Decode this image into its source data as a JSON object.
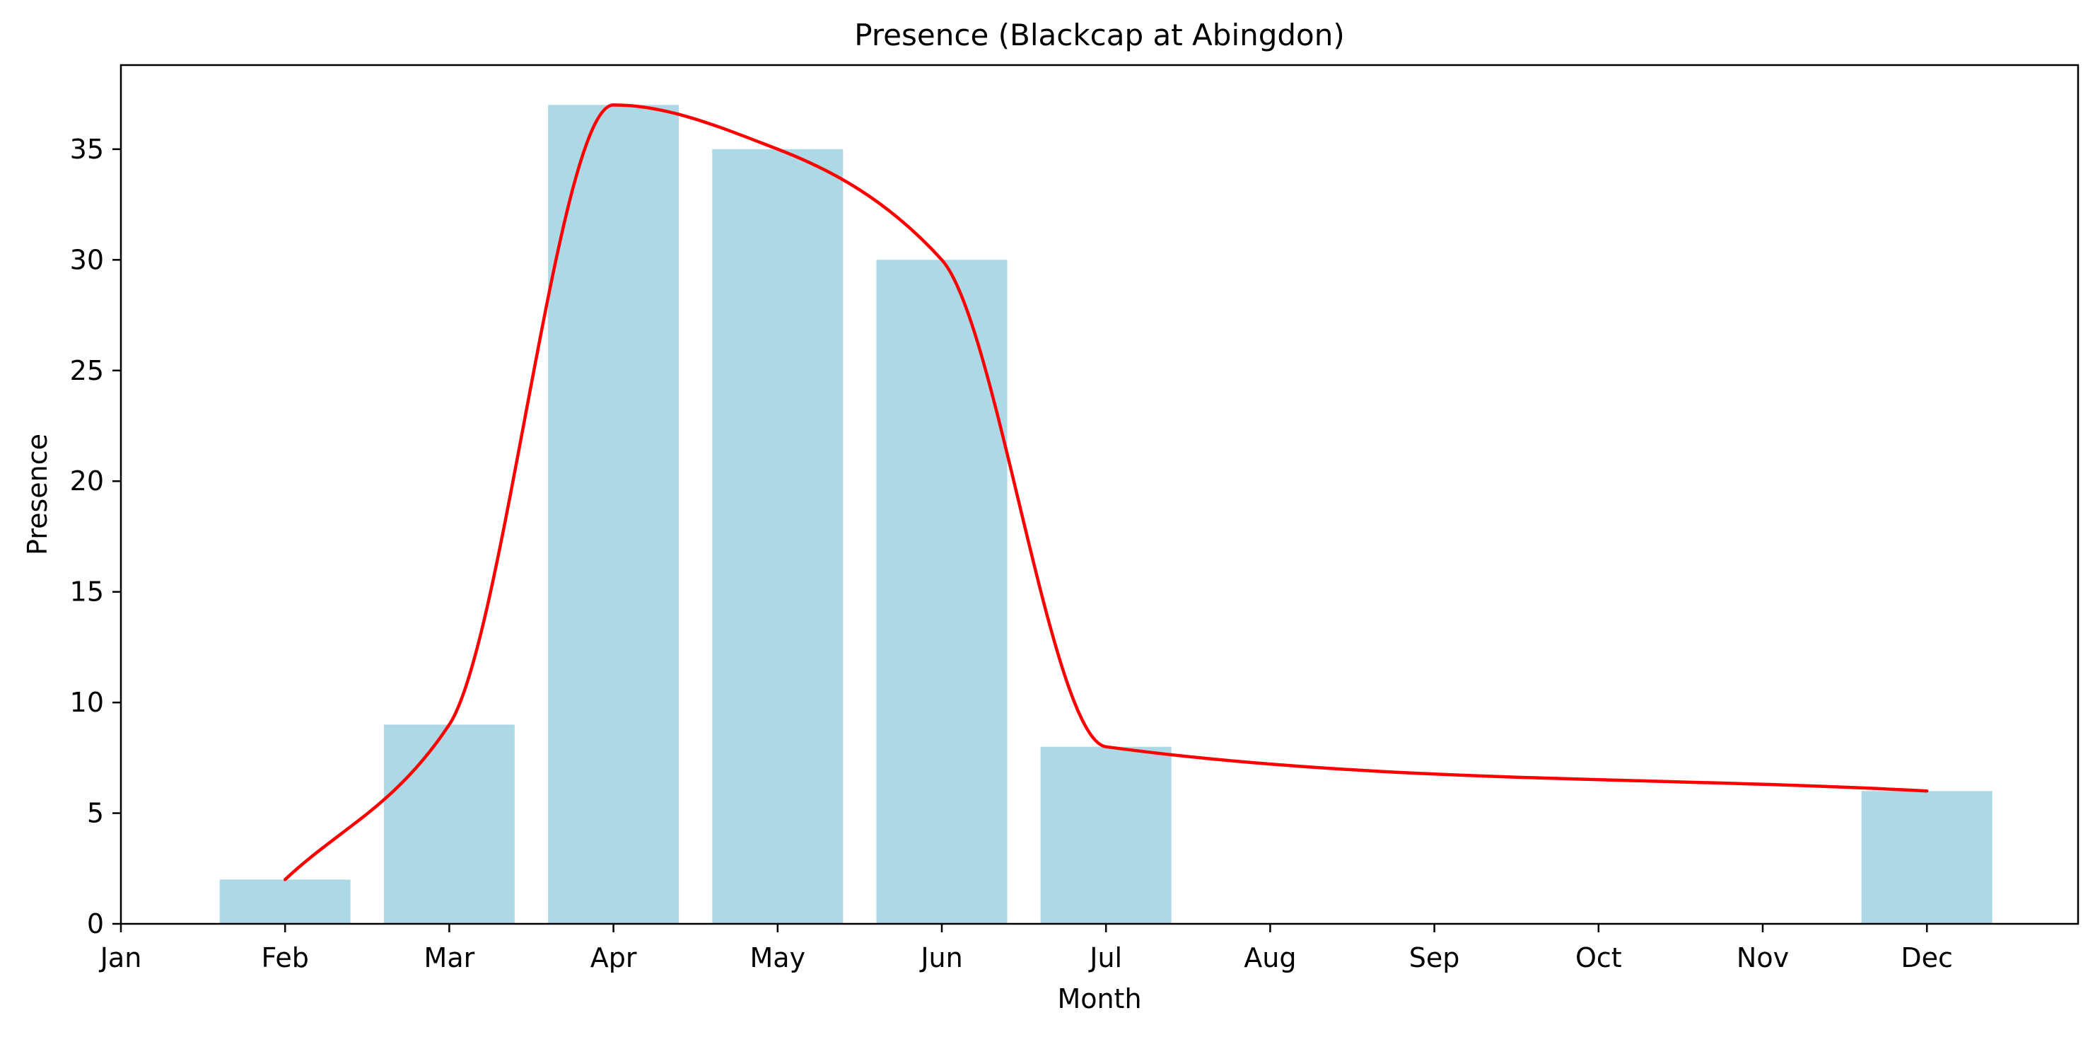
{
  "chart_data": {
    "type": "bar",
    "title": "Presence (Blackcap at Abingdon)",
    "xlabel": "Month",
    "ylabel": "Presence",
    "categories": [
      "Jan",
      "Feb",
      "Mar",
      "Apr",
      "May",
      "Jun",
      "Jul",
      "Aug",
      "Sep",
      "Oct",
      "Nov",
      "Dec"
    ],
    "ylim": [
      0,
      38.8
    ],
    "yticks": [
      0,
      5,
      10,
      15,
      20,
      25,
      30,
      35
    ],
    "grid": false,
    "series": [
      {
        "type": "bar",
        "color": "#add8e6",
        "points": [
          {
            "month": "Feb",
            "value": 2
          },
          {
            "month": "Mar",
            "value": 9
          },
          {
            "month": "Apr",
            "value": 37
          },
          {
            "month": "May",
            "value": 35
          },
          {
            "month": "Jun",
            "value": 30
          },
          {
            "month": "Jul",
            "value": 8
          },
          {
            "month": "Dec",
            "value": 6
          }
        ]
      },
      {
        "type": "line",
        "smooth": true,
        "color": "#ff0000",
        "points": [
          {
            "month": "Feb",
            "value": 2
          },
          {
            "month": "Mar",
            "value": 9
          },
          {
            "month": "Apr",
            "value": 37
          },
          {
            "month": "May",
            "value": 35
          },
          {
            "month": "Jun",
            "value": 30
          },
          {
            "month": "Jul",
            "value": 8
          },
          {
            "month": "Dec",
            "value": 6
          }
        ]
      }
    ]
  }
}
